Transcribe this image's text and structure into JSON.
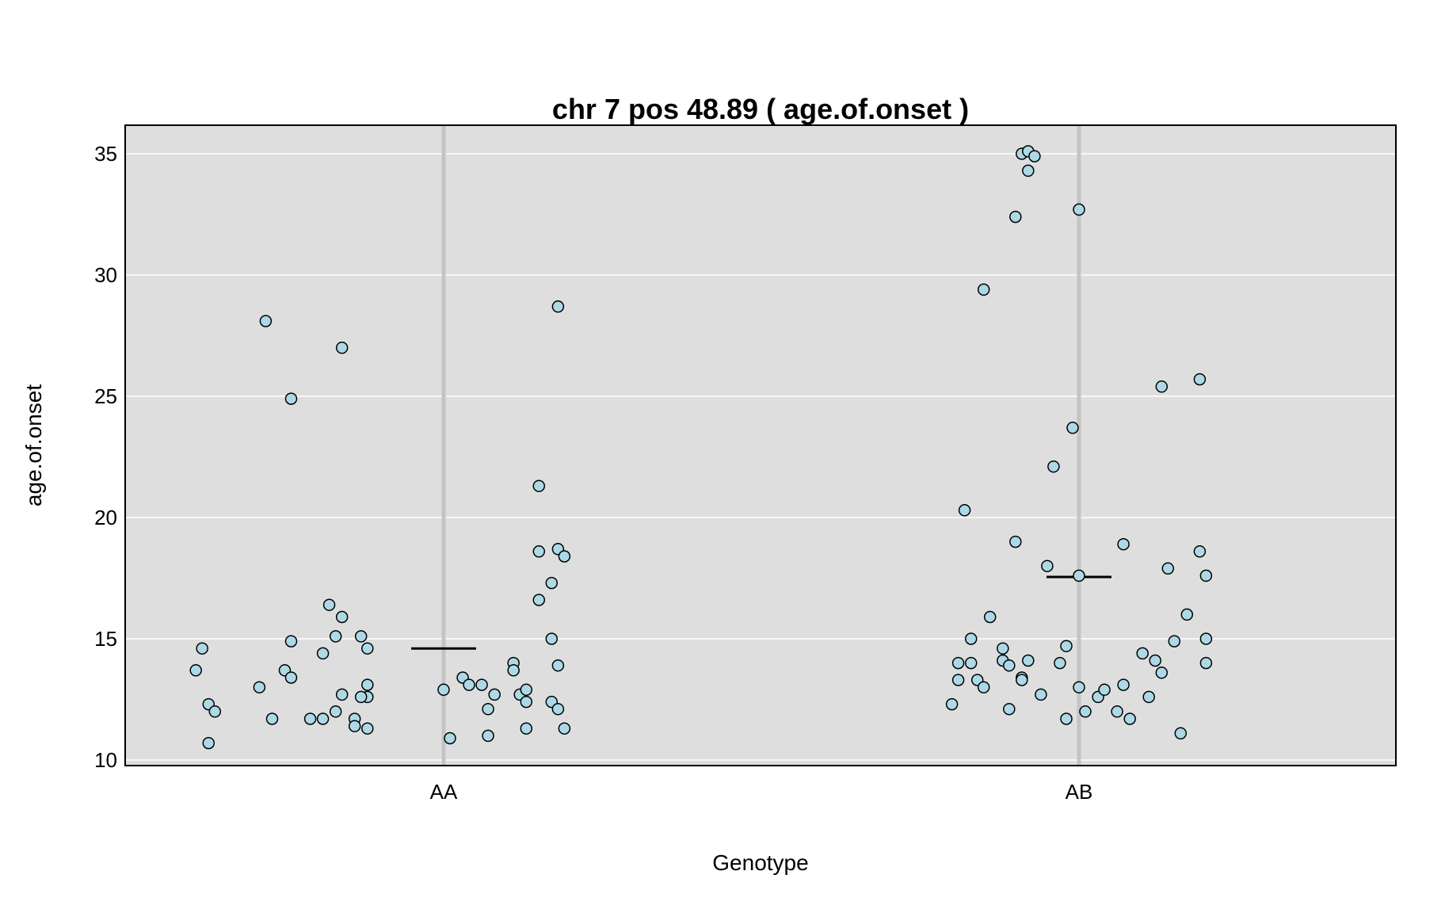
{
  "chart_data": {
    "type": "scatter",
    "title": "chr 7 pos 48.89 ( age.of.onset )",
    "xlabel": "Genotype",
    "ylabel": "age.of.onset",
    "categories": [
      "AA",
      "AB"
    ],
    "ylim": [
      10,
      36
    ],
    "yticks": [
      10,
      15,
      20,
      25,
      30,
      35
    ],
    "grid": true,
    "colors": {
      "panel_bg": "#dedede",
      "grid": "#ffffff",
      "category_line": "#c4c4c4",
      "point_fill": "#add8e6",
      "point_stroke": "#000000",
      "mean_line": "#000000"
    },
    "means": [
      {
        "category": "AA",
        "value": 14.6
      },
      {
        "category": "AB",
        "value": 17.55
      }
    ],
    "series": [
      {
        "category": "AA",
        "points": [
          {
            "x": -0.38,
            "y": 14.6
          },
          {
            "x": -0.39,
            "y": 13.7
          },
          {
            "x": -0.37,
            "y": 12.3
          },
          {
            "x": -0.36,
            "y": 12.0
          },
          {
            "x": -0.37,
            "y": 10.7
          },
          {
            "x": -0.28,
            "y": 28.1
          },
          {
            "x": -0.24,
            "y": 24.9
          },
          {
            "x": -0.16,
            "y": 27.0
          },
          {
            "x": -0.24,
            "y": 14.9
          },
          {
            "x": -0.25,
            "y": 13.7
          },
          {
            "x": -0.24,
            "y": 13.4
          },
          {
            "x": -0.29,
            "y": 13.0
          },
          {
            "x": -0.27,
            "y": 11.7
          },
          {
            "x": -0.21,
            "y": 11.7
          },
          {
            "x": -0.19,
            "y": 11.7
          },
          {
            "x": -0.18,
            "y": 16.4
          },
          {
            "x": -0.16,
            "y": 15.9
          },
          {
            "x": -0.17,
            "y": 15.1
          },
          {
            "x": -0.19,
            "y": 14.4
          },
          {
            "x": -0.16,
            "y": 12.7
          },
          {
            "x": -0.17,
            "y": 12.0
          },
          {
            "x": -0.14,
            "y": 11.7
          },
          {
            "x": -0.14,
            "y": 11.4
          },
          {
            "x": -0.12,
            "y": 11.3
          },
          {
            "x": -0.13,
            "y": 15.1
          },
          {
            "x": -0.12,
            "y": 14.6
          },
          {
            "x": -0.12,
            "y": 13.1
          },
          {
            "x": -0.12,
            "y": 12.6
          },
          {
            "x": -0.13,
            "y": 12.6
          },
          {
            "x": 0.0,
            "y": 12.9
          },
          {
            "x": 0.01,
            "y": 10.9
          },
          {
            "x": 0.03,
            "y": 13.4
          },
          {
            "x": 0.04,
            "y": 13.1
          },
          {
            "x": 0.06,
            "y": 13.1
          },
          {
            "x": 0.07,
            "y": 12.1
          },
          {
            "x": 0.08,
            "y": 12.7
          },
          {
            "x": 0.07,
            "y": 11.0
          },
          {
            "x": 0.11,
            "y": 14.0
          },
          {
            "x": 0.11,
            "y": 13.7
          },
          {
            "x": 0.12,
            "y": 12.7
          },
          {
            "x": 0.13,
            "y": 12.9
          },
          {
            "x": 0.13,
            "y": 12.4
          },
          {
            "x": 0.13,
            "y": 11.3
          },
          {
            "x": 0.15,
            "y": 21.3
          },
          {
            "x": 0.15,
            "y": 18.6
          },
          {
            "x": 0.15,
            "y": 16.6
          },
          {
            "x": 0.17,
            "y": 17.3
          },
          {
            "x": 0.17,
            "y": 15.0
          },
          {
            "x": 0.18,
            "y": 18.7
          },
          {
            "x": 0.19,
            "y": 18.4
          },
          {
            "x": 0.18,
            "y": 28.7
          },
          {
            "x": 0.18,
            "y": 13.9
          },
          {
            "x": 0.17,
            "y": 12.4
          },
          {
            "x": 0.18,
            "y": 12.1
          },
          {
            "x": 0.19,
            "y": 11.3
          }
        ]
      },
      {
        "category": "AB",
        "points": [
          {
            "x": -0.2,
            "y": 12.3
          },
          {
            "x": -0.19,
            "y": 13.3
          },
          {
            "x": -0.19,
            "y": 14.0
          },
          {
            "x": -0.18,
            "y": 20.3
          },
          {
            "x": -0.17,
            "y": 14.0
          },
          {
            "x": -0.17,
            "y": 15.0
          },
          {
            "x": -0.16,
            "y": 13.3
          },
          {
            "x": -0.15,
            "y": 13.0
          },
          {
            "x": -0.15,
            "y": 29.4
          },
          {
            "x": -0.14,
            "y": 15.9
          },
          {
            "x": -0.12,
            "y": 14.1
          },
          {
            "x": -0.12,
            "y": 14.6
          },
          {
            "x": -0.11,
            "y": 13.9
          },
          {
            "x": -0.11,
            "y": 12.1
          },
          {
            "x": -0.1,
            "y": 32.4
          },
          {
            "x": -0.1,
            "y": 19.0
          },
          {
            "x": -0.09,
            "y": 13.4
          },
          {
            "x": -0.09,
            "y": 13.3
          },
          {
            "x": -0.09,
            "y": 35.0
          },
          {
            "x": -0.08,
            "y": 35.1
          },
          {
            "x": -0.08,
            "y": 34.3
          },
          {
            "x": -0.08,
            "y": 14.1
          },
          {
            "x": -0.07,
            "y": 34.9
          },
          {
            "x": -0.06,
            "y": 12.7
          },
          {
            "x": -0.05,
            "y": 18.0
          },
          {
            "x": -0.04,
            "y": 22.1
          },
          {
            "x": -0.03,
            "y": 14.0
          },
          {
            "x": -0.02,
            "y": 14.7
          },
          {
            "x": -0.02,
            "y": 11.7
          },
          {
            "x": -0.01,
            "y": 23.7
          },
          {
            "x": 0.0,
            "y": 32.7
          },
          {
            "x": 0.0,
            "y": 17.6
          },
          {
            "x": 0.0,
            "y": 13.0
          },
          {
            "x": 0.01,
            "y": 12.0
          },
          {
            "x": 0.03,
            "y": 12.6
          },
          {
            "x": 0.04,
            "y": 12.9
          },
          {
            "x": 0.06,
            "y": 12.0
          },
          {
            "x": 0.07,
            "y": 13.1
          },
          {
            "x": 0.07,
            "y": 18.9
          },
          {
            "x": 0.08,
            "y": 11.7
          },
          {
            "x": 0.1,
            "y": 14.4
          },
          {
            "x": 0.11,
            "y": 12.6
          },
          {
            "x": 0.12,
            "y": 14.1
          },
          {
            "x": 0.13,
            "y": 13.6
          },
          {
            "x": 0.13,
            "y": 25.4
          },
          {
            "x": 0.14,
            "y": 17.9
          },
          {
            "x": 0.15,
            "y": 14.9
          },
          {
            "x": 0.16,
            "y": 11.1
          },
          {
            "x": 0.17,
            "y": 16.0
          },
          {
            "x": 0.19,
            "y": 25.7
          },
          {
            "x": 0.19,
            "y": 18.6
          },
          {
            "x": 0.2,
            "y": 17.6
          },
          {
            "x": 0.2,
            "y": 15.0
          },
          {
            "x": 0.2,
            "y": 14.0
          }
        ]
      }
    ]
  }
}
